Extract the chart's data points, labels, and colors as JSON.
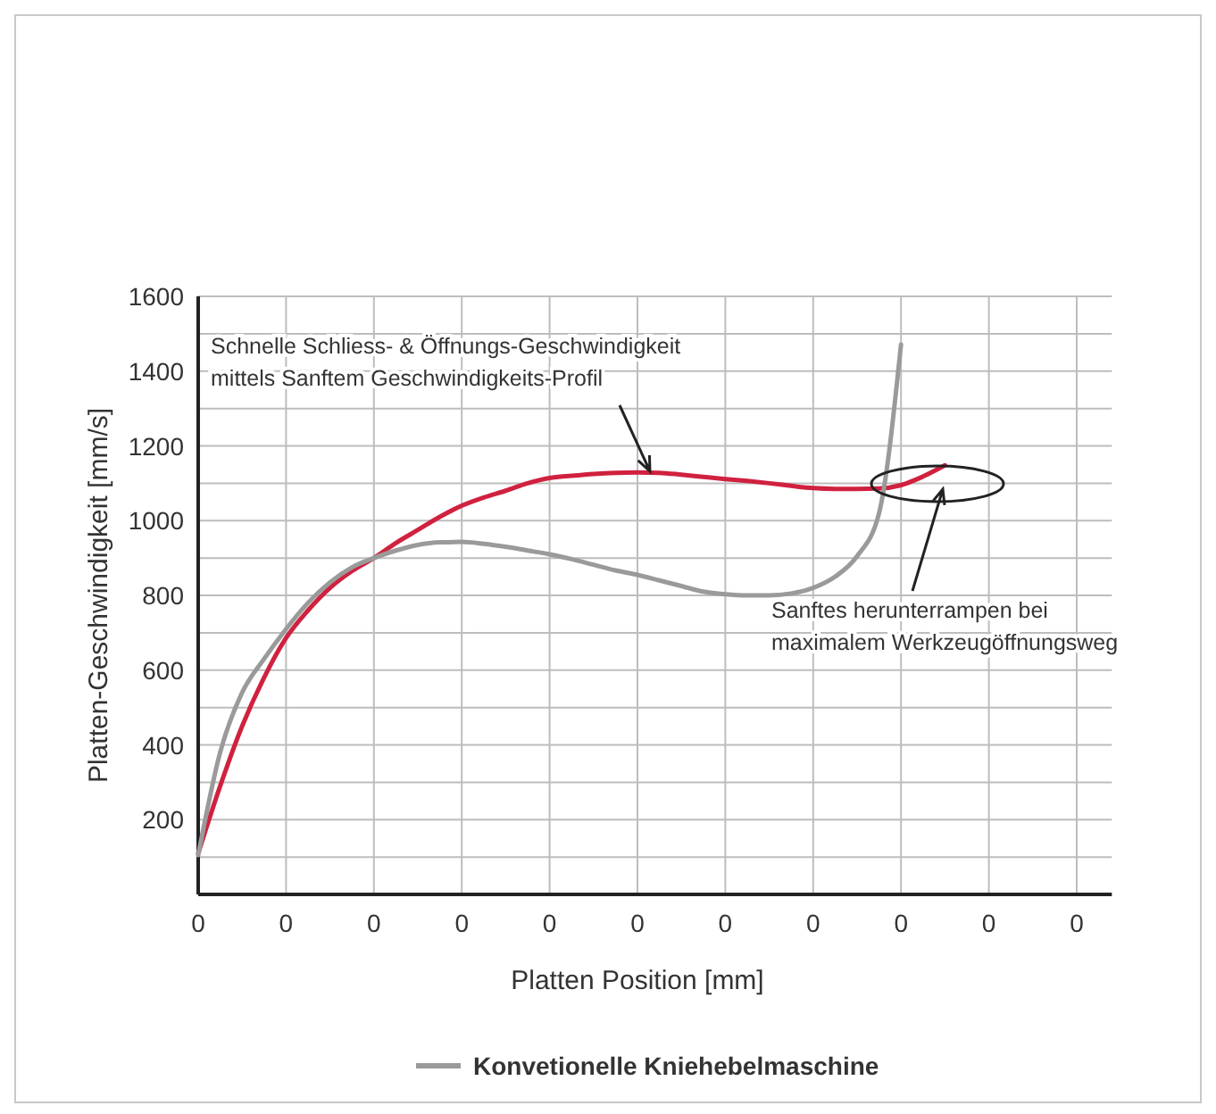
{
  "chart_data": {
    "type": "line",
    "xlabel": "Platten Position [mm]",
    "ylabel": "Platten-Geschwindigkeit [mm/s]",
    "categories": [
      "0",
      null,
      null,
      null,
      "0",
      null,
      null,
      null,
      "0",
      null,
      null,
      null,
      "0",
      null,
      null,
      null,
      "0",
      null,
      null,
      null,
      "0",
      null,
      null,
      null,
      "0",
      null,
      null,
      null,
      "0",
      null,
      null,
      null,
      "0",
      null,
      null,
      null,
      "0",
      null,
      null,
      null,
      "0"
    ],
    "ylim": [
      0,
      1600
    ],
    "yticks": [
      {
        "value": 100,
        "label": null
      },
      200,
      {
        "value": 300,
        "label": null
      },
      400,
      {
        "value": 500,
        "label": null
      },
      600,
      {
        "value": 700,
        "label": null
      },
      800,
      {
        "value": 900,
        "label": null
      },
      1000,
      {
        "value": 1100,
        "label": null
      },
      1200,
      {
        "value": 1300,
        "label": null
      },
      1400,
      {
        "value": 1500,
        "label": null
      },
      1600
    ],
    "grid": true,
    "legend": "bottom",
    "marker": "none",
    "line_style": "solid",
    "series": [
      {
        "color": "#d0213f",
        "values": [
          110,
          290,
          450,
          580,
          686,
          760,
          820,
          865,
          900,
          940,
          975,
          1010,
          1040,
          1062,
          1080,
          1100,
          1114,
          1120,
          1125,
          1128,
          1129,
          1128,
          1123,
          1117,
          1111,
          1106,
          1100,
          1093,
          1087,
          1085,
          1085,
          1086,
          1095,
          1118,
          1148,
          null,
          null,
          null,
          null,
          null,
          null
        ]
      },
      {
        "name": "Konvetionelle Kniehebelmaschine",
        "color": "#9a9a9a",
        "values": [
          105,
          380,
          540,
          630,
          710,
          780,
          835,
          875,
          900,
          920,
          935,
          942,
          943,
          938,
          930,
          920,
          910,
          897,
          882,
          867,
          855,
          840,
          825,
          810,
          803,
          800,
          800,
          805,
          820,
          850,
          905,
          1020,
          1471,
          null,
          null,
          null,
          null,
          null,
          null,
          null,
          null
        ]
      }
    ],
    "annotations": [
      "Schnelle Schliess- & Öffnungs-Geschwindigkeit\nmittels Sanftem Geschwindigkeits-Profil",
      "Sanftes herunterrampen bei\nmaximalem Werkzeugöffnungsweg"
    ]
  }
}
